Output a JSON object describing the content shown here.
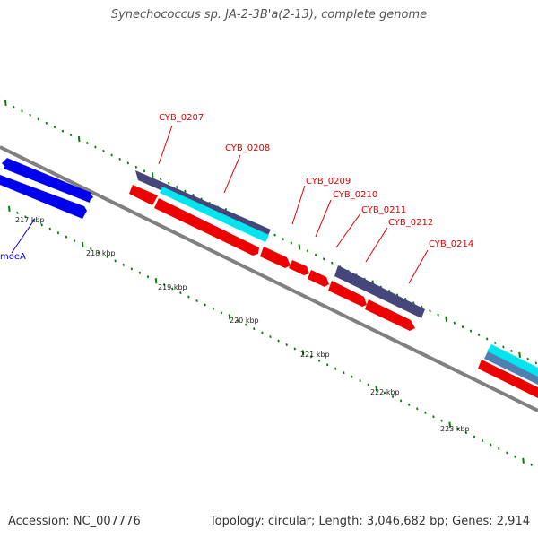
{
  "title": "Synechococcus sp. JA-2-3B'a(2-13), complete genome",
  "footer": {
    "accession": "Accession: NC_007776",
    "summary": "Topology: circular; Length: 3,046,682 bp; Genes: 2,914"
  },
  "colors": {
    "backbone": "#808080",
    "tick": "#008000",
    "label_red": "#dd0000",
    "label_blue": "#0000cc",
    "gene_red": "#ee0000",
    "gene_blue": "#0000ee",
    "gene_purple": "#46467a",
    "gene_cyan": "#00e5ee",
    "gene_steel": "#4f7fae"
  },
  "kbp_labels": [
    "217 kbp",
    "218 kbp",
    "219 kbp",
    "220 kbp",
    "221 kbp",
    "222 kbp",
    "223 kbp"
  ],
  "gene_labels": [
    {
      "text": "CYB_0207",
      "color": "red"
    },
    {
      "text": "CYB_0208",
      "color": "red"
    },
    {
      "text": "CYB_0209",
      "color": "red"
    },
    {
      "text": "CYB_0210",
      "color": "red"
    },
    {
      "text": "CYB_0211",
      "color": "red"
    },
    {
      "text": "CYB_0212",
      "color": "red"
    },
    {
      "text": "CYB_0214",
      "color": "red"
    },
    {
      "text": "moeA",
      "color": "blue"
    }
  ]
}
